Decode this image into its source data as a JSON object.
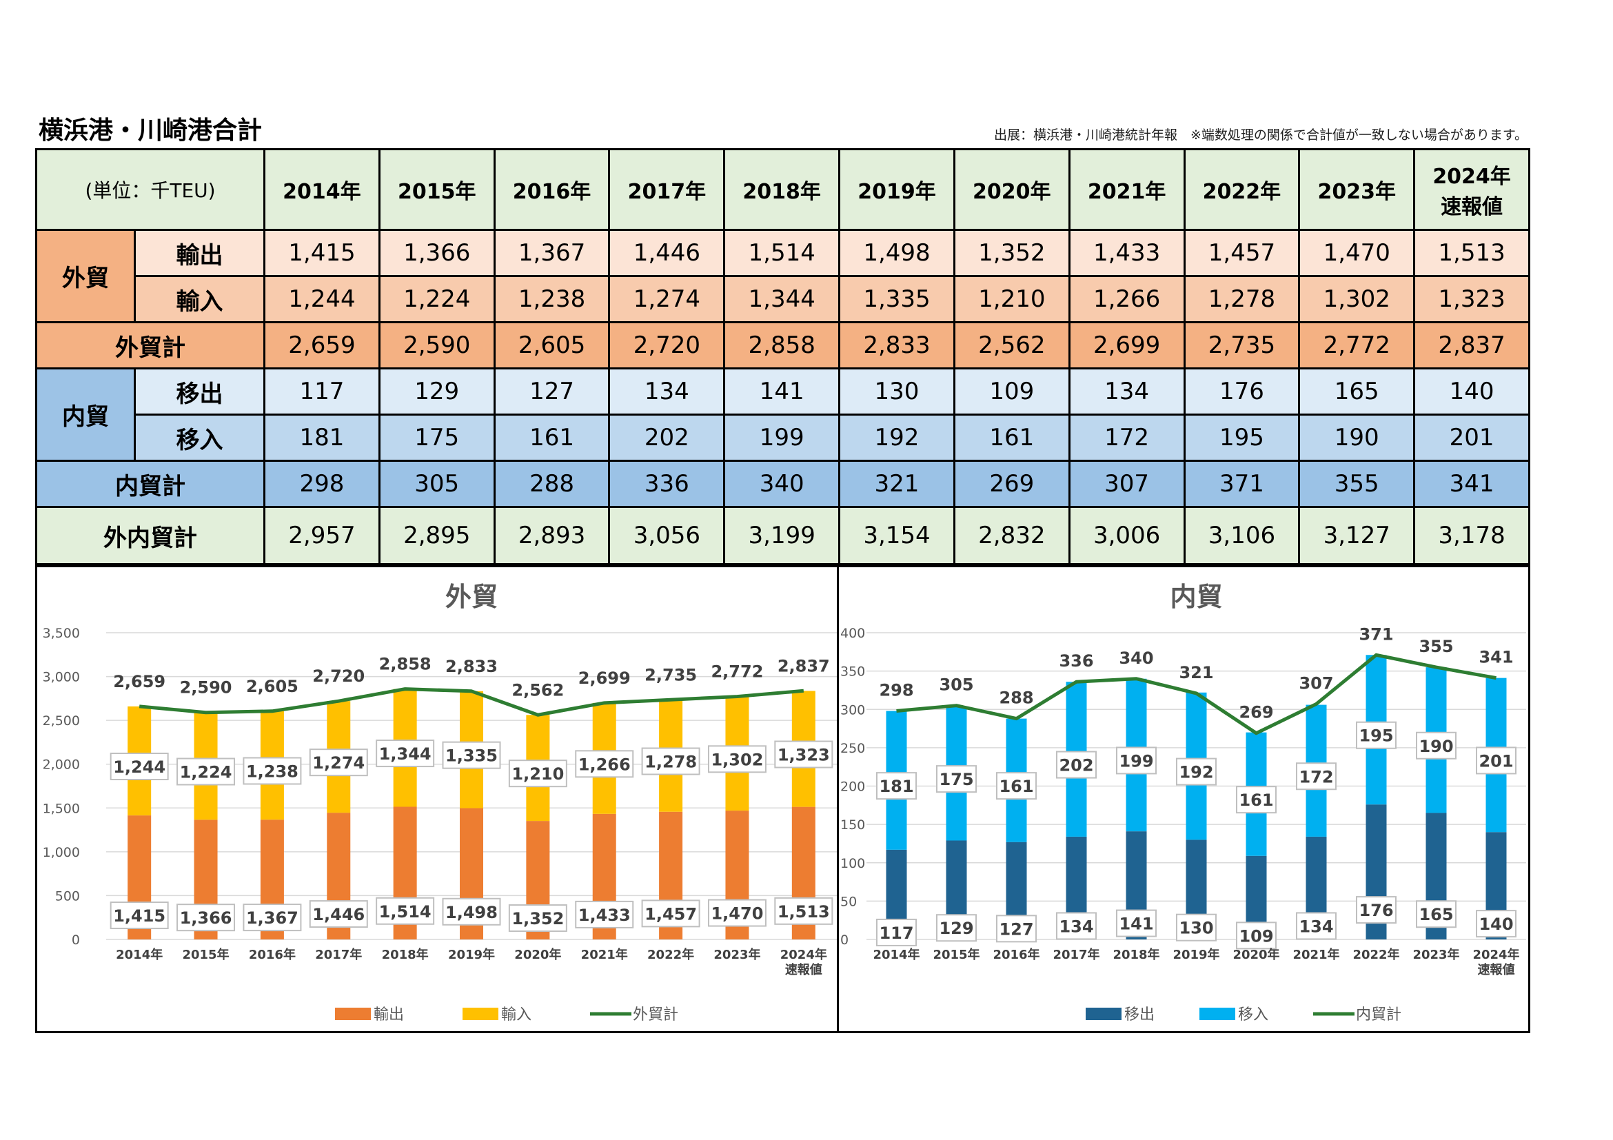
{
  "title": "横浜港・川崎港合計",
  "source_note": "出展：横浜港・川崎港統計年報　※端数処理の関係で合計値が一致しない場合があります。",
  "table": {
    "unit_label": "(単位：千TEU)",
    "years": [
      "2014年",
      "2015年",
      "2016年",
      "2017年",
      "2018年",
      "2019年",
      "2020年",
      "2021年",
      "2022年",
      "2023年",
      "2024年\n速報値"
    ],
    "gaiboeki_label": "外貿",
    "export_label": "輸出",
    "import_label": "輸入",
    "gaiboeki_total_label": "外貿計",
    "naiboeki_label": "内貿",
    "move_out_label": "移出",
    "move_in_label": "移入",
    "naiboeki_total_label": "内貿計",
    "grand_total_label": "外内貿計",
    "export": [
      "1,415",
      "1,366",
      "1,367",
      "1,446",
      "1,514",
      "1,498",
      "1,352",
      "1,433",
      "1,457",
      "1,470",
      "1,513"
    ],
    "import": [
      "1,244",
      "1,224",
      "1,238",
      "1,274",
      "1,344",
      "1,335",
      "1,210",
      "1,266",
      "1,278",
      "1,302",
      "1,323"
    ],
    "gaiboeki_total": [
      "2,659",
      "2,590",
      "2,605",
      "2,720",
      "2,858",
      "2,833",
      "2,562",
      "2,699",
      "2,735",
      "2,772",
      "2,837"
    ],
    "move_out": [
      "117",
      "129",
      "127",
      "134",
      "141",
      "130",
      "109",
      "134",
      "176",
      "165",
      "140"
    ],
    "move_in": [
      "181",
      "175",
      "161",
      "202",
      "199",
      "192",
      "161",
      "172",
      "195",
      "190",
      "201"
    ],
    "naiboeki_total": [
      "298",
      "305",
      "288",
      "336",
      "340",
      "321",
      "269",
      "307",
      "371",
      "355",
      "341"
    ],
    "grand_total": [
      "2,957",
      "2,895",
      "2,893",
      "3,056",
      "3,199",
      "3,154",
      "2,832",
      "3,006",
      "3,106",
      "3,127",
      "3,178"
    ]
  },
  "chart_data": [
    {
      "type": "bar",
      "stacked": true,
      "title": "外貿",
      "categories": [
        "2014年",
        "2015年",
        "2016年",
        "2017年",
        "2018年",
        "2019年",
        "2020年",
        "2021年",
        "2022年",
        "2023年",
        "2024年\n速報値"
      ],
      "series": [
        {
          "name": "輸出",
          "kind": "bar",
          "color": "#ed7d31",
          "values": [
            1415,
            1366,
            1367,
            1446,
            1514,
            1498,
            1352,
            1433,
            1457,
            1470,
            1513
          ]
        },
        {
          "name": "輸入",
          "kind": "bar",
          "color": "#ffc000",
          "values": [
            1244,
            1224,
            1238,
            1274,
            1344,
            1335,
            1210,
            1266,
            1278,
            1302,
            1323
          ]
        },
        {
          "name": "外貿計",
          "kind": "line",
          "color": "#2e7d32",
          "values": [
            2659,
            2590,
            2605,
            2720,
            2858,
            2833,
            2562,
            2699,
            2735,
            2772,
            2837
          ]
        }
      ],
      "ylim": [
        0,
        3500
      ],
      "yticks": [
        0,
        500,
        1000,
        1500,
        2000,
        2500,
        3000,
        3500
      ],
      "ytick_labels": [
        "0",
        "500",
        "1,000",
        "1,500",
        "2,000",
        "2,500",
        "3,000",
        "3,500"
      ],
      "grid": true,
      "legend": "bottom"
    },
    {
      "type": "bar",
      "stacked": true,
      "title": "内貿",
      "categories": [
        "2014年",
        "2015年",
        "2016年",
        "2017年",
        "2018年",
        "2019年",
        "2020年",
        "2021年",
        "2022年",
        "2023年",
        "2024年\n速報値"
      ],
      "series": [
        {
          "name": "移出",
          "kind": "bar",
          "color": "#1f6391",
          "values": [
            117,
            129,
            127,
            134,
            141,
            130,
            109,
            134,
            176,
            165,
            140
          ]
        },
        {
          "name": "移入",
          "kind": "bar",
          "color": "#00b0f0",
          "values": [
            181,
            175,
            161,
            202,
            199,
            192,
            161,
            172,
            195,
            190,
            201
          ]
        },
        {
          "name": "内貿計",
          "kind": "line",
          "color": "#2e7d32",
          "values": [
            298,
            305,
            288,
            336,
            340,
            321,
            269,
            307,
            371,
            355,
            341
          ]
        }
      ],
      "ylim": [
        0,
        400
      ],
      "yticks": [
        0,
        50,
        100,
        150,
        200,
        250,
        300,
        350,
        400
      ],
      "ytick_labels": [
        "0",
        "50",
        "100",
        "150",
        "200",
        "250",
        "300",
        "350",
        "400"
      ],
      "grid": true,
      "legend": "bottom"
    }
  ]
}
